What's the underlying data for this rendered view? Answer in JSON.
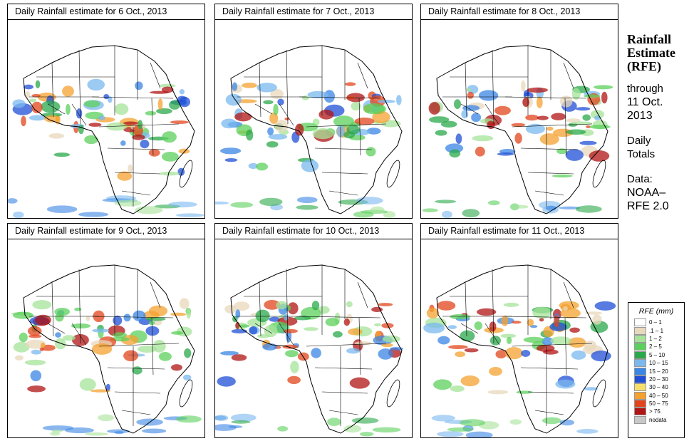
{
  "panels": [
    {
      "title": "Daily Rainfall estimate for  6 Oct., 2013",
      "day": 6
    },
    {
      "title": "Daily Rainfall estimate for  7 Oct., 2013",
      "day": 7
    },
    {
      "title": "Daily Rainfall estimate for  8 Oct., 2013",
      "day": 8
    },
    {
      "title": "Daily Rainfall estimate for  9 Oct., 2013",
      "day": 9
    },
    {
      "title": "Daily Rainfall estimate for  10 Oct., 2013",
      "day": 10
    },
    {
      "title": "Daily Rainfall estimate for  11 Oct., 2013",
      "day": 11
    }
  ],
  "sidebar": {
    "title_line1": "Rainfall",
    "title_line2": "Estimate",
    "title_line3": "(RFE)",
    "through_label": "through",
    "date_line1": "11 Oct.",
    "date_line2": "2013",
    "period_line1": "Daily",
    "period_line2": "Totals",
    "source_line1": "Data:",
    "source_line2": "NOAA–",
    "source_line3": "RFE 2.0"
  },
  "legend": {
    "title": "RFE (mm)",
    "items": [
      {
        "label": "0 – 1",
        "color": "#ffffff"
      },
      {
        "label": ".1 – 1",
        "color": "#e8d8bc"
      },
      {
        "label": "1 – 2",
        "color": "#a6e39a"
      },
      {
        "label": "2 – 5",
        "color": "#5cd05c"
      },
      {
        "label": "5 – 10",
        "color": "#2aa84a"
      },
      {
        "label": "10 – 15",
        "color": "#7ab8ef"
      },
      {
        "label": "15 – 20",
        "color": "#3b86e4"
      },
      {
        "label": "20 – 30",
        "color": "#1f4fd6"
      },
      {
        "label": "30 – 40",
        "color": "#f7df6b"
      },
      {
        "label": "40 – 50",
        "color": "#f4a12f"
      },
      {
        "label": "50 – 75",
        "color": "#e2451c"
      },
      {
        "label": "> 75",
        "color": "#b01414"
      },
      {
        "label": "nodata",
        "color": "#c8c8c8"
      }
    ]
  }
}
